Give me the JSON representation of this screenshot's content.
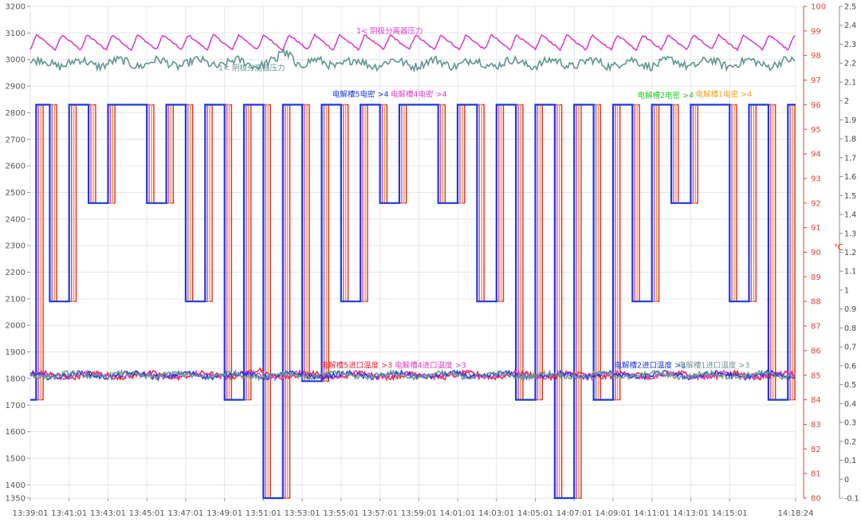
{
  "chart_data": {
    "type": "line",
    "title": "",
    "left_axis": {
      "range": [
        1350,
        3200
      ],
      "ticks": [
        1350,
        1400,
        1500,
        1600,
        1700,
        1800,
        1900,
        2000,
        2100,
        2200,
        2300,
        2400,
        2500,
        2600,
        2700,
        2800,
        2900,
        3000,
        3100,
        3200
      ],
      "color": "#555555"
    },
    "right_axis_temp": {
      "label": "℃",
      "range": [
        80,
        100
      ],
      "ticks": [
        80,
        81,
        82,
        83,
        84,
        85,
        86,
        87,
        88,
        89,
        90,
        91,
        92,
        93,
        94,
        95,
        96,
        97,
        98,
        99,
        100
      ],
      "color": "#e0453c"
    },
    "right_axis_pressure": {
      "range": [
        -0.1,
        2.5
      ],
      "ticks": [
        "-0.1",
        "0",
        "0.1",
        "0.2",
        "0.3",
        "0.4",
        "0.5",
        "0.6",
        "0.7",
        "0.8",
        "0.9",
        "1",
        "1.1",
        "1.2",
        "1.3",
        "1.4",
        "1.5",
        "1.6",
        "1.7",
        "1.8",
        "1.9",
        "2",
        "2.1",
        "2.2",
        "2.3",
        "2.4",
        "2.5"
      ],
      "color": "#444444"
    },
    "x_ticks": [
      "13:39:01",
      "13:41:01",
      "13:43:01",
      "13:45:01",
      "13:47:01",
      "13:49:01",
      "13:51:01",
      "13:53:01",
      "13:55:01",
      "13:57:01",
      "13:59:01",
      "14:01:01",
      "14:03:01",
      "14:05:01",
      "14:07:01",
      "14:09:01",
      "14:11:01",
      "14:13:01",
      "14:15:01",
      "14:18:24"
    ],
    "x_range_minutes": [
      0,
      39.4
    ],
    "grid": true,
    "series": {
      "current": {
        "base": 2830,
        "colors": [
          "#1a3be0",
          "#e040c8",
          "#f0a020",
          "#e8283c"
        ],
        "segments": [
          {
            "start": 0.0,
            "end": 0.3,
            "value": 1720
          },
          {
            "start": 0.3,
            "end": 1.0,
            "value": 2830
          },
          {
            "start": 1.0,
            "end": 2.0,
            "value": 2090
          },
          {
            "start": 2.0,
            "end": 3.0,
            "value": 2830
          },
          {
            "start": 3.0,
            "end": 4.0,
            "value": 2460
          },
          {
            "start": 4.0,
            "end": 6.0,
            "value": 2830
          },
          {
            "start": 6.0,
            "end": 7.0,
            "value": 2460
          },
          {
            "start": 7.0,
            "end": 8.0,
            "value": 2830
          },
          {
            "start": 8.0,
            "end": 9.0,
            "value": 2090
          },
          {
            "start": 9.0,
            "end": 10.0,
            "value": 2830
          },
          {
            "start": 10.0,
            "end": 11.0,
            "value": 1720
          },
          {
            "start": 11.0,
            "end": 12.0,
            "value": 2830
          },
          {
            "start": 12.0,
            "end": 13.0,
            "value": 1350
          },
          {
            "start": 13.0,
            "end": 14.0,
            "value": 2830
          },
          {
            "start": 14.0,
            "end": 15.0,
            "value": 1790
          },
          {
            "start": 15.0,
            "end": 16.0,
            "value": 2830
          },
          {
            "start": 16.0,
            "end": 17.0,
            "value": 2090
          },
          {
            "start": 17.0,
            "end": 18.0,
            "value": 2830
          },
          {
            "start": 18.0,
            "end": 19.0,
            "value": 2460
          },
          {
            "start": 19.0,
            "end": 21.0,
            "value": 2830
          },
          {
            "start": 21.0,
            "end": 22.0,
            "value": 2460
          },
          {
            "start": 22.0,
            "end": 23.0,
            "value": 2830
          },
          {
            "start": 23.0,
            "end": 24.0,
            "value": 2090
          },
          {
            "start": 24.0,
            "end": 25.0,
            "value": 2830
          },
          {
            "start": 25.0,
            "end": 26.0,
            "value": 1720
          },
          {
            "start": 26.0,
            "end": 27.0,
            "value": 2830
          },
          {
            "start": 27.0,
            "end": 28.0,
            "value": 1350
          },
          {
            "start": 28.0,
            "end": 29.0,
            "value": 2830
          },
          {
            "start": 29.0,
            "end": 30.0,
            "value": 1720
          },
          {
            "start": 30.0,
            "end": 31.0,
            "value": 2830
          },
          {
            "start": 31.0,
            "end": 32.0,
            "value": 2090
          },
          {
            "start": 32.0,
            "end": 33.0,
            "value": 2830
          },
          {
            "start": 33.0,
            "end": 34.0,
            "value": 2460
          },
          {
            "start": 34.0,
            "end": 36.0,
            "value": 2830
          },
          {
            "start": 36.0,
            "end": 37.0,
            "value": 2090
          },
          {
            "start": 37.0,
            "end": 38.0,
            "value": 2830
          },
          {
            "start": 38.0,
            "end": 39.0,
            "value": 1720
          },
          {
            "start": 39.0,
            "end": 39.4,
            "value": 2830
          }
        ]
      },
      "temperature": {
        "base": 85,
        "colors": [
          "#e8283c",
          "#e040c8",
          "#1a3be0",
          "#6e9a94"
        ]
      },
      "pressure": {
        "outlet_color": "#e040c8",
        "outlet_level": 2.3,
        "inlet_color": "#5f9690",
        "inlet_level": 2.2
      }
    },
    "annotations": [
      {
        "text": "1< 阴极分离器压力",
        "color": "#e040c8",
        "x": 18.5,
        "y_left": 3098
      },
      {
        "text": "1< 阴极分离器压力",
        "color": "#5f9690",
        "x": 11.4,
        "y_left": 2958
      },
      {
        "text": "电解槽5电密 >4",
        "color": "#1a3be0",
        "x": 17.0,
        "y_left": 2860
      },
      {
        "text": "电解槽4电密 >4",
        "color": "#e040c8",
        "x": 20.0,
        "y_left": 2860
      },
      {
        "text": "电解槽2电密 >4",
        "color": "#22cc22",
        "x": 32.7,
        "y_left": 2855
      },
      {
        "text": "电解槽1电密 >4",
        "color": "#f0a020",
        "x": 35.7,
        "y_left": 2860
      },
      {
        "text": "电解槽5进口温度 >3",
        "color": "#e8283c",
        "x": 16.8,
        "y_left": 1840
      },
      {
        "text": "电解槽4进口温度 >3",
        "color": "#e040c8",
        "x": 20.6,
        "y_left": 1840
      },
      {
        "text": "电解槽2进口温度 >3",
        "color": "#1a3be0",
        "x": 31.9,
        "y_left": 1840
      },
      {
        "text": "电解槽1进口温度 >3",
        "color": "#6e9a94",
        "x": 35.2,
        "y_left": 1840
      }
    ]
  }
}
